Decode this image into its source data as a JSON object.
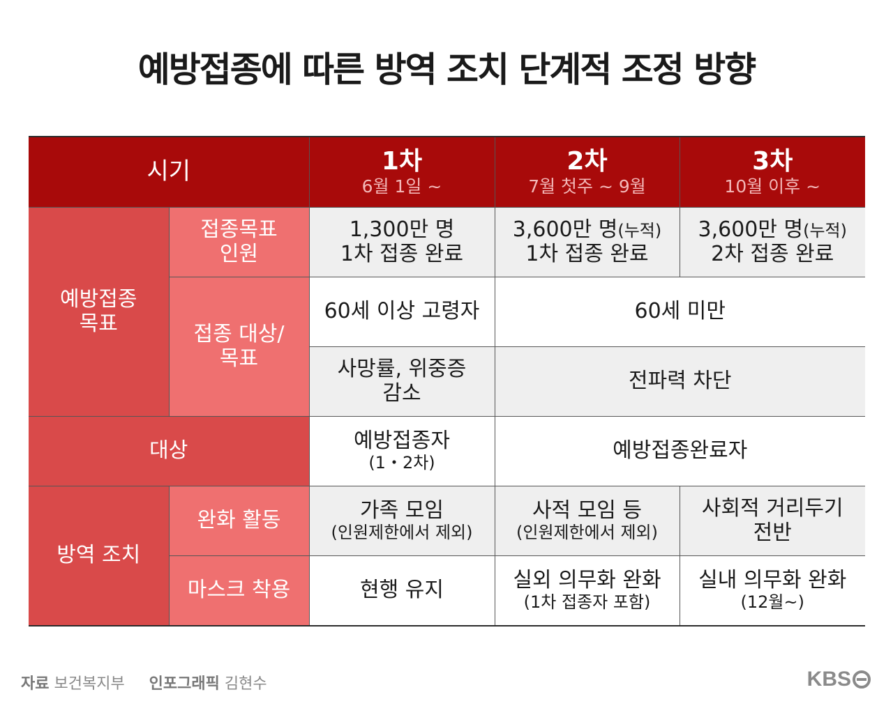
{
  "title": "예방접종에 따른 방역 조치 단계적 조정 방향",
  "header": {
    "period_label": "시기",
    "rounds": [
      {
        "round": "1차",
        "period": "6월 1일 ~"
      },
      {
        "round": "2차",
        "period": "7월 첫주 ~ 9월"
      },
      {
        "round": "3차",
        "period": "10월 이후 ~"
      }
    ]
  },
  "rows": {
    "vaccination_goal": {
      "category": [
        "예방접종",
        "목표"
      ],
      "target_people": {
        "label": [
          "접종목표",
          "인원"
        ],
        "r1": [
          "1,300만 명",
          "1차 접종 완료"
        ],
        "r2": {
          "main": "3,600만 명",
          "note": "(누적)",
          "line2": "1차 접종 완료"
        },
        "r3": {
          "main": "3,600만 명",
          "note": "(누적)",
          "line2": "2차 접종 완료"
        }
      },
      "target_group": {
        "label": [
          "접종 대상/",
          "목표"
        ],
        "age_r1": "60세 이상 고령자",
        "age_r23": "60세 미만",
        "goal_r1": [
          "사망률, 위중증",
          "감소"
        ],
        "goal_r23": "전파력 차단"
      }
    },
    "eligible": {
      "category": "대상",
      "r1": {
        "main": "예방접종자",
        "sub": "(1・2차)"
      },
      "r23": "예방접종완료자"
    },
    "quarantine": {
      "category": "방역 조치",
      "activities": {
        "label": "완화 활동",
        "r1": {
          "main": "가족 모임",
          "sub": "(인원제한에서 제외)"
        },
        "r2": {
          "main": "사적 모임 등",
          "sub": "(인원제한에서 제외)"
        },
        "r3": [
          "사회적 거리두기",
          "전반"
        ]
      },
      "mask": {
        "label": "마스크 착용",
        "r1": "현행 유지",
        "r2": {
          "main": "실외 의무화 완화",
          "sub": "(1차 접종자 포함)"
        },
        "r3": {
          "main": "실내 의무화 완화",
          "sub": "(12월~)"
        }
      }
    }
  },
  "footer": {
    "source_label": "자료",
    "source": "보건복지부",
    "graphic_label": "인포그래픽",
    "graphic_author": "김현수"
  },
  "logo": {
    "text": "KBS",
    "icon": "kbs-circle-icon"
  }
}
